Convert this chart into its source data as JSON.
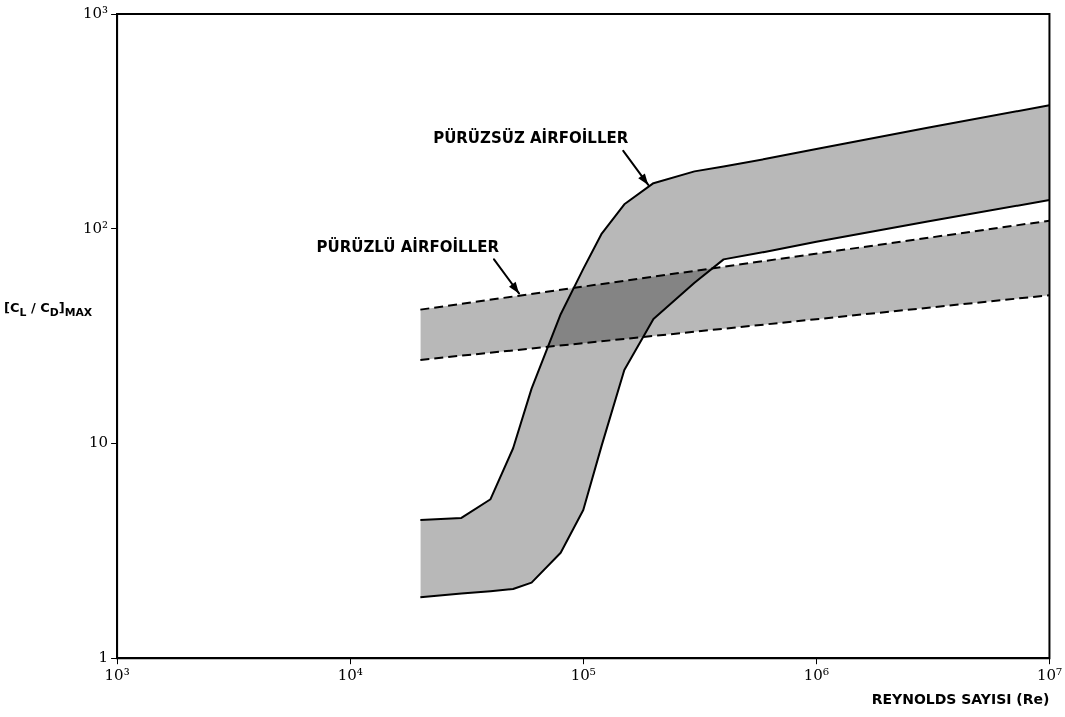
{
  "chart_data": {
    "type": "line",
    "xlabel": "REYNOLDS SAYISI (Re)",
    "ylabel": "[C$_{L}$ / C$_{D}$]$_{MAX}$",
    "log": "xy",
    "xlim": [
      1000,
      10000000
    ],
    "ylim": [
      1,
      1000
    ],
    "xticks": [
      {
        "value": 1000,
        "label": "10³"
      },
      {
        "value": 10000,
        "label": "10⁴"
      },
      {
        "value": 100000,
        "label": "10⁵"
      },
      {
        "value": 1000000,
        "label": "10⁶"
      },
      {
        "value": 10000000,
        "label": "10⁷"
      }
    ],
    "yticks": [
      1,
      10,
      {
        "value": 100,
        "label": "10²"
      },
      {
        "value": 1000,
        "label": "10³"
      }
    ],
    "grid": false,
    "legend": false,
    "series": [
      {
        "type": "area",
        "color": "#000000",
        "line_style": "solid",
        "x": [
          20000,
          30000,
          40000,
          50000,
          60000,
          80000,
          100000,
          120000,
          150000,
          200000,
          300000,
          400000,
          600000,
          1000000,
          3000000,
          10000000
        ],
        "values": [
          4.4,
          4.5,
          5.5,
          9.5,
          18,
          40,
          65,
          95,
          130,
          163,
          185,
          195,
          211,
          235,
          295,
          376
        ]
      },
      {
        "color": "#000000",
        "line_style": "solid",
        "x": [
          20000,
          30000,
          40000,
          50000,
          60000,
          80000,
          100000,
          120000,
          150000,
          200000,
          300000,
          400000,
          600000,
          1000000,
          3000000,
          10000000
        ],
        "values": [
          1.92,
          2.0,
          2.05,
          2.1,
          2.25,
          3.1,
          4.9,
          9.8,
          22,
          38,
          56,
          72,
          78,
          87,
          108,
          136
        ]
      },
      {
        "type": "area",
        "color": "#000000",
        "line_style": "dashed",
        "x": [
          20000,
          10000000
        ],
        "values": [
          42,
          109
        ]
      },
      {
        "color": "#000000",
        "line_style": "dashed",
        "x": [
          20000,
          10000000
        ],
        "values": [
          24.5,
          49
        ]
      }
    ],
    "annotations": [
      {
        "text": "PÜRÜZSÜZ AİRFOİLLER",
        "x": 190000,
        "y": 160
      },
      {
        "text": "PÜRÜZLÜ AİRFOİLLER",
        "x": 53000,
        "y": 50
      }
    ]
  }
}
